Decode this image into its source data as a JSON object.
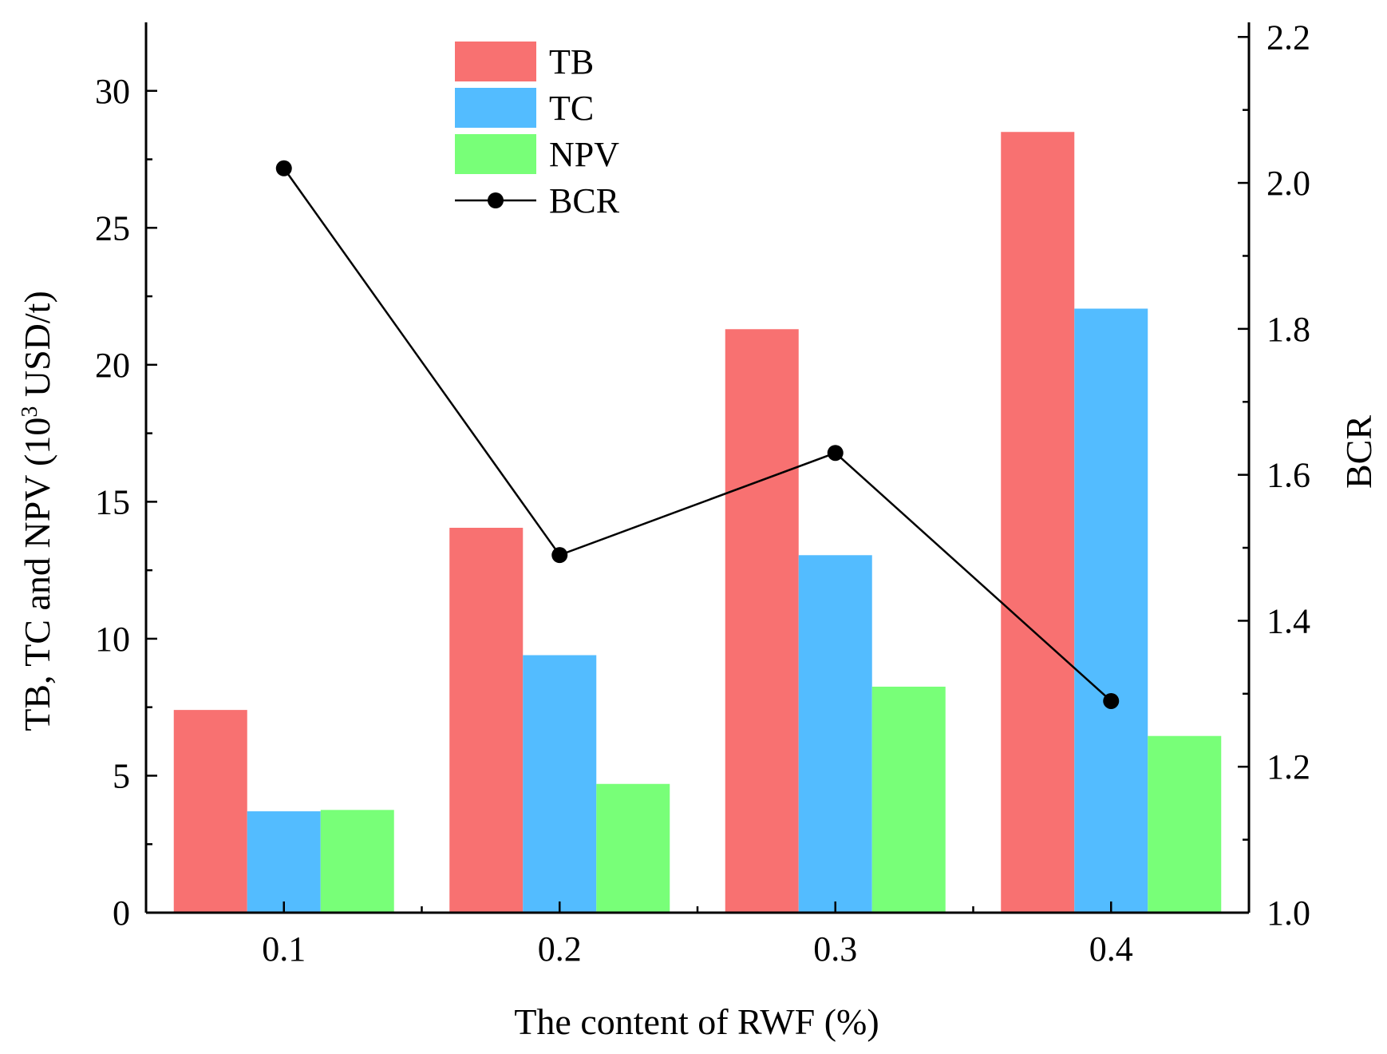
{
  "chart_data": {
    "type": "bar",
    "categories": [
      "0.1",
      "0.2",
      "0.3",
      "0.4"
    ],
    "series": [
      {
        "name": "TB",
        "kind": "bar",
        "axis": "left",
        "color": "#f87171",
        "values": [
          7.4,
          14.05,
          21.3,
          28.5
        ]
      },
      {
        "name": "TC",
        "kind": "bar",
        "axis": "left",
        "color": "#53bcff",
        "values": [
          3.7,
          9.4,
          13.05,
          22.05
        ]
      },
      {
        "name": "NPV",
        "kind": "bar",
        "axis": "left",
        "color": "#78ff78",
        "values": [
          3.75,
          4.7,
          8.25,
          6.45
        ]
      },
      {
        "name": "BCR",
        "kind": "line",
        "axis": "right",
        "color": "#000000",
        "values": [
          2.02,
          1.49,
          1.63,
          1.29
        ]
      }
    ],
    "xlabel": "The content of RWF (%)",
    "ylabel_left_main": "TB, TC and NPV (10",
    "ylabel_left_sup": "3",
    "ylabel_left_tail": " USD/t)",
    "ylabel_right": "BCR",
    "ylim_left": [
      0,
      32.5
    ],
    "yticks_left": [
      0,
      5,
      10,
      15,
      20,
      25,
      30
    ],
    "ylim_right": [
      1.0,
      2.22
    ],
    "yticks_right": [
      "1.0",
      "1.2",
      "1.4",
      "1.6",
      "1.8",
      "2.0",
      "2.2"
    ],
    "legend": {
      "position": "top-center",
      "entries": [
        "TB",
        "TC",
        "NPV",
        "BCR"
      ]
    },
    "grid": false
  }
}
